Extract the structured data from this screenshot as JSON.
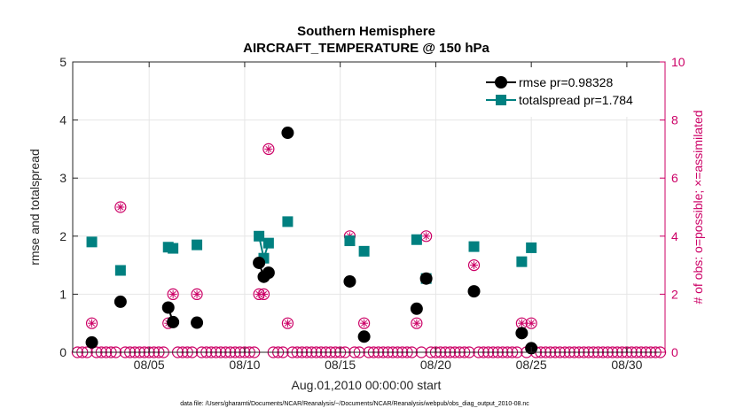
{
  "chart_data": {
    "type": "line",
    "title_line1": "Southern Hemisphere",
    "title_line2": "AIRCRAFT_TEMPERATURE @ 150 hPa",
    "xlabel": "Aug.01,2010 00:00:00 start",
    "ylabel_left": "rmse and totalspread",
    "ylabel_right": "# of obs: o=possible; ×=assimilated",
    "footnote": "data file: /Users/gharamti/Documents/NCAR/Reanalysis/~/Documents/NCAR/Reanalysis/webpub/obs_diag_output_2010-08.nc",
    "xlim": [
      1,
      32
    ],
    "ylim_left": [
      0,
      5
    ],
    "ylim_right": [
      0,
      10
    ],
    "x_ticks": [
      {
        "value": 5,
        "label": "08/05"
      },
      {
        "value": 10,
        "label": "08/10"
      },
      {
        "value": 15,
        "label": "08/15"
      },
      {
        "value": 20,
        "label": "08/20"
      },
      {
        "value": 25,
        "label": "08/25"
      },
      {
        "value": 30,
        "label": "08/30"
      }
    ],
    "y_left_ticks": [
      "0",
      "1",
      "2",
      "3",
      "4",
      "5"
    ],
    "y_right_ticks": [
      "0",
      "2",
      "4",
      "6",
      "8",
      "10"
    ],
    "colors": {
      "rmse": "#000000",
      "totalspread": "#008080",
      "obs": "#cc0066",
      "grid": "#e6e6e6",
      "axis": "#262626"
    },
    "series": [
      {
        "name": "rmse pr=0.98328",
        "values": [
          [
            2.0,
            0.17
          ],
          [
            3.5,
            0.87
          ],
          [
            6.0,
            0.77
          ],
          [
            6.25,
            0.52
          ],
          [
            7.5,
            0.51
          ],
          [
            10.75,
            1.54
          ],
          [
            11.0,
            1.3
          ],
          [
            11.25,
            1.37
          ],
          [
            12.25,
            3.78
          ],
          [
            15.5,
            1.22
          ],
          [
            16.25,
            0.27
          ],
          [
            19.0,
            0.75
          ],
          [
            19.5,
            1.27
          ],
          [
            22.0,
            1.05
          ],
          [
            24.5,
            0.33
          ],
          [
            25.0,
            0.07
          ]
        ]
      },
      {
        "name": "totalspread pr=1.784",
        "values": [
          [
            2.0,
            1.9
          ],
          [
            3.5,
            1.41
          ],
          [
            6.0,
            1.81
          ],
          [
            6.25,
            1.79
          ],
          [
            7.5,
            1.85
          ],
          [
            10.75,
            2.0
          ],
          [
            11.0,
            1.62
          ],
          [
            11.25,
            1.88
          ],
          [
            12.25,
            2.25
          ],
          [
            15.5,
            1.92
          ],
          [
            16.25,
            1.74
          ],
          [
            19.0,
            1.94
          ],
          [
            19.5,
            1.27
          ],
          [
            22.0,
            1.82
          ],
          [
            24.5,
            1.56
          ],
          [
            25.0,
            1.8
          ]
        ]
      }
    ],
    "obs_counts": {
      "name": "# of obs",
      "x_start": 1.25,
      "x_step": 0.25,
      "nonzero": [
        [
          2.0,
          1
        ],
        [
          3.5,
          5
        ],
        [
          6.0,
          1
        ],
        [
          6.25,
          2
        ],
        [
          7.5,
          2
        ],
        [
          10.75,
          2
        ],
        [
          11.0,
          2
        ],
        [
          11.25,
          7
        ],
        [
          12.25,
          1
        ],
        [
          15.5,
          4
        ],
        [
          16.25,
          1
        ],
        [
          19.0,
          1
        ],
        [
          19.5,
          4
        ],
        [
          22.0,
          3
        ],
        [
          24.5,
          1
        ],
        [
          25.0,
          1
        ]
      ]
    },
    "legend_position": "top-right"
  }
}
